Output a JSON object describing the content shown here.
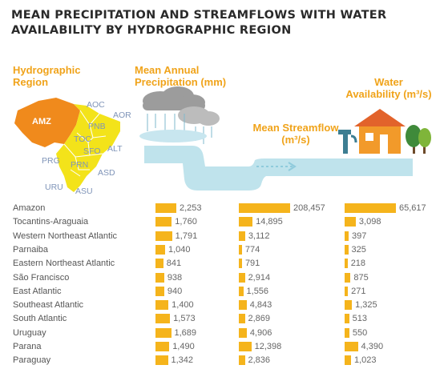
{
  "title_line1": "MEAN PRECIPITATION AND STREAMFLOWS WITH WATER",
  "title_line2": "AVAILABILITY BY HYDROGRAPHIC REGION",
  "headers": {
    "region": [
      "Hydrographic",
      "Region"
    ],
    "precip": [
      "Mean Annual",
      "Precipitation (mm)"
    ],
    "streamflow": [
      "Mean Streamflow",
      "(m³/s)"
    ],
    "availability": [
      "Water",
      "Availability  (m³/s)"
    ]
  },
  "map_labels": [
    "AMZ",
    "AOC",
    "AOR",
    "PNB",
    "TOC",
    "SFO",
    "ALT",
    "PRG",
    "PRN",
    "ASD",
    "URU",
    "ASU"
  ],
  "colors": {
    "accent": "#f5b41c",
    "header": "#f0a31a",
    "river": "#bfe3ec",
    "amazon": "#f08a1c",
    "map": "#f3e31a"
  },
  "chart_data": {
    "type": "bar",
    "categories": [
      "Amazon",
      "Tocantins-Araguaia",
      "Western Northeast Atlantic",
      "Parnaiba",
      "Eastern Northeast Atlantic",
      "São Francisco",
      "East Atlantic",
      "Southeast Atlantic",
      "South Atlantic",
      "Uruguay",
      "Parana",
      "Paraguay"
    ],
    "series": [
      {
        "name": "Mean Annual Precipitation (mm)",
        "values": [
          2253,
          1760,
          1791,
          1040,
          841,
          938,
          940,
          1400,
          1573,
          1689,
          1490,
          1342
        ],
        "labels": [
          "2,253",
          "1,760",
          "1,791",
          "1,040",
          "841",
          "938",
          "940",
          "1,400",
          "1,573",
          "1,689",
          "1,490",
          "1,342"
        ]
      },
      {
        "name": "Mean Streamflow (m³/s)",
        "values": [
          208457,
          14895,
          3112,
          774,
          791,
          2914,
          1556,
          4843,
          2869,
          4906,
          12398,
          2836
        ],
        "labels": [
          "208,457",
          "14,895",
          "3,112",
          "774",
          "791",
          "2,914",
          "1,556",
          "4,843",
          "2,869",
          "4,906",
          "12,398",
          "2,836"
        ]
      },
      {
        "name": "Water Availability (m³/s)",
        "values": [
          65617,
          3098,
          397,
          325,
          218,
          875,
          271,
          1325,
          513,
          550,
          4390,
          1023
        ],
        "labels": [
          "65,617",
          "3,098",
          "397",
          "325",
          "218",
          "875",
          "271",
          "1,325",
          "513",
          "550",
          "4,390",
          "1,023"
        ]
      }
    ]
  }
}
